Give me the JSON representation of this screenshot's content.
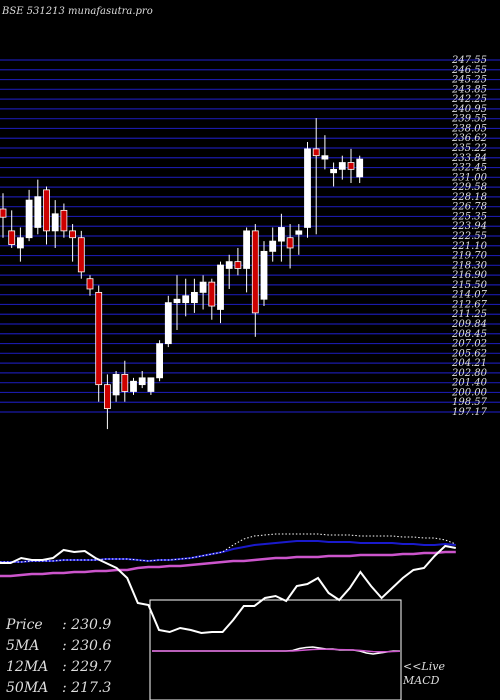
{
  "header": {
    "title": "BSE 531213 munafasutra.pro"
  },
  "colors": {
    "grid": "#1a1aa8",
    "up": "#ffffff",
    "down": "#cc0000",
    "ma_long": "#cc55cc",
    "ma_short": "#1a1acc",
    "price_line": "#ffffff"
  },
  "chart_data": [
    {
      "type": "candlestick",
      "price_ticks": [
        "247.55",
        "246.55",
        "245.25",
        "243.85",
        "242.25",
        "240.95",
        "239.55",
        "238.05",
        "236.62",
        "235.22",
        "233.84",
        "232.45",
        "231.00",
        "229.58",
        "228.18",
        "226.78",
        "225.35",
        "223.94",
        "222.55",
        "221.10",
        "219.70",
        "218.30",
        "216.90",
        "215.50",
        "214.07",
        "212.67",
        "211.25",
        "209.84",
        "208.45",
        "207.02",
        "205.62",
        "204.21",
        "202.80",
        "201.40",
        "200.00",
        "198.57",
        "197.17"
      ],
      "ylim": [
        196.5,
        248.0
      ],
      "candles": [
        {
          "o": 226.2,
          "h": 228.5,
          "l": 222.0,
          "c": 225.0
        },
        {
          "o": 223.0,
          "h": 226.0,
          "l": 220.5,
          "c": 221.0
        },
        {
          "o": 220.5,
          "h": 223.5,
          "l": 218.5,
          "c": 222.0
        },
        {
          "o": 222.0,
          "h": 229.0,
          "l": 221.5,
          "c": 227.5
        },
        {
          "o": 223.5,
          "h": 230.5,
          "l": 222.5,
          "c": 228.0
        },
        {
          "o": 229.0,
          "h": 229.5,
          "l": 221.0,
          "c": 223.0
        },
        {
          "o": 223.0,
          "h": 227.5,
          "l": 220.5,
          "c": 225.5
        },
        {
          "o": 226.0,
          "h": 227.0,
          "l": 222.0,
          "c": 223.0
        },
        {
          "o": 223.0,
          "h": 224.0,
          "l": 218.5,
          "c": 222.0
        },
        {
          "o": 222.0,
          "h": 223.0,
          "l": 216.0,
          "c": 217.0
        },
        {
          "o": 216.0,
          "h": 216.5,
          "l": 213.5,
          "c": 214.5
        },
        {
          "o": 214.0,
          "h": 215.0,
          "l": 198.0,
          "c": 200.5
        },
        {
          "o": 200.5,
          "h": 202.0,
          "l": 194.0,
          "c": 197.0
        },
        {
          "o": 199.0,
          "h": 202.5,
          "l": 198.0,
          "c": 202.0
        },
        {
          "o": 202.0,
          "h": 204.0,
          "l": 198.0,
          "c": 199.5
        },
        {
          "o": 199.5,
          "h": 201.5,
          "l": 199.0,
          "c": 201.0
        },
        {
          "o": 200.5,
          "h": 202.5,
          "l": 200.0,
          "c": 201.5
        },
        {
          "o": 199.5,
          "h": 201.5,
          "l": 199.0,
          "c": 201.5
        },
        {
          "o": 201.5,
          "h": 207.0,
          "l": 201.0,
          "c": 206.5
        },
        {
          "o": 206.5,
          "h": 213.5,
          "l": 206.0,
          "c": 212.5
        },
        {
          "o": 212.5,
          "h": 216.5,
          "l": 208.5,
          "c": 213.0
        },
        {
          "o": 212.5,
          "h": 216.0,
          "l": 210.5,
          "c": 213.5
        },
        {
          "o": 212.5,
          "h": 216.0,
          "l": 211.0,
          "c": 214.0
        },
        {
          "o": 214.0,
          "h": 216.5,
          "l": 211.5,
          "c": 215.5
        },
        {
          "o": 215.5,
          "h": 216.0,
          "l": 210.0,
          "c": 212.0
        },
        {
          "o": 211.5,
          "h": 218.5,
          "l": 209.5,
          "c": 218.0
        },
        {
          "o": 217.5,
          "h": 219.5,
          "l": 214.5,
          "c": 218.5
        },
        {
          "o": 218.5,
          "h": 220.5,
          "l": 216.5,
          "c": 217.5
        },
        {
          "o": 217.5,
          "h": 223.5,
          "l": 214.0,
          "c": 223.0
        },
        {
          "o": 223.0,
          "h": 224.0,
          "l": 207.5,
          "c": 211.0
        },
        {
          "o": 213.0,
          "h": 221.5,
          "l": 212.0,
          "c": 220.0
        },
        {
          "o": 220.0,
          "h": 223.5,
          "l": 218.5,
          "c": 221.5
        },
        {
          "o": 221.5,
          "h": 225.5,
          "l": 218.5,
          "c": 223.5
        },
        {
          "o": 222.0,
          "h": 224.0,
          "l": 217.5,
          "c": 220.5
        },
        {
          "o": 222.5,
          "h": 224.0,
          "l": 219.5,
          "c": 223.0
        },
        {
          "o": 223.5,
          "h": 236.0,
          "l": 222.0,
          "c": 235.0
        },
        {
          "o": 235.0,
          "h": 239.5,
          "l": 222.5,
          "c": 234.0
        },
        {
          "o": 233.5,
          "h": 237.0,
          "l": 232.0,
          "c": 234.0
        },
        {
          "o": 231.5,
          "h": 233.0,
          "l": 229.5,
          "c": 232.0
        },
        {
          "o": 232.0,
          "h": 234.0,
          "l": 230.5,
          "c": 233.0
        },
        {
          "o": 233.0,
          "h": 235.0,
          "l": 230.0,
          "c": 232.0
        },
        {
          "o": 230.9,
          "h": 234.0,
          "l": 230.0,
          "c": 233.5
        }
      ]
    },
    {
      "type": "line",
      "series": [
        {
          "key": "ma_long",
          "values": [
            28,
            28,
            27,
            26,
            26,
            25,
            25,
            24,
            24,
            23,
            23,
            22,
            22,
            20,
            19,
            19,
            18,
            18,
            17,
            16,
            15,
            14,
            13,
            13,
            12,
            11,
            10,
            10,
            9,
            9,
            9,
            8,
            8,
            8,
            7,
            7,
            7,
            7,
            6,
            6,
            5,
            5,
            4,
            4
          ]
        },
        {
          "key": "ma_short",
          "values": [
            14,
            14,
            14,
            13,
            13,
            13,
            12,
            12,
            12,
            12,
            11,
            11,
            11,
            12,
            13,
            12,
            12,
            11,
            10,
            8,
            6,
            4,
            1,
            -1,
            -3,
            -4,
            -5,
            -6,
            -7,
            -7,
            -7,
            -6,
            -6,
            -6,
            -5,
            -5,
            -5,
            -5,
            -4,
            -4,
            -3,
            -3,
            -4,
            -3
          ]
        },
        {
          "key": "price",
          "values": [
            15,
            15,
            10,
            12,
            12,
            10,
            2,
            4,
            3,
            10,
            15,
            20,
            30,
            55,
            57,
            82,
            84,
            80,
            82,
            85,
            84,
            84,
            72,
            58,
            58,
            50,
            48,
            53,
            38,
            36,
            30,
            45,
            52,
            40,
            24,
            38,
            50,
            40,
            30,
            22,
            20,
            8,
            -2,
            0
          ]
        },
        {
          "key": "upper_band",
          "values": [
            14,
            14,
            14,
            13,
            13,
            13,
            12,
            12,
            12,
            12,
            11,
            11,
            11,
            12,
            13,
            12,
            12,
            11,
            10,
            8,
            6,
            4,
            -3,
            -9,
            -12,
            -13,
            -14,
            -14,
            -14,
            -14,
            -14,
            -13,
            -13,
            -13,
            -12,
            -12,
            -12,
            -12,
            -11,
            -11,
            -10,
            -10,
            -8,
            -4
          ]
        }
      ]
    },
    {
      "type": "line",
      "series": [
        {
          "key": "macd",
          "values": [
            0,
            0,
            0,
            0,
            0,
            0,
            0,
            0,
            0,
            0,
            0,
            0,
            0,
            0,
            0,
            0,
            0,
            0,
            0,
            0,
            0,
            0.5,
            2.5,
            3.5,
            4,
            3,
            2,
            2,
            1,
            1,
            1,
            0,
            -2,
            -3,
            -2,
            -1,
            0,
            0
          ]
        },
        {
          "key": "signal",
          "values": [
            0,
            0,
            0,
            0,
            0,
            0,
            0,
            0,
            0,
            0,
            0,
            0,
            0,
            0,
            0,
            0,
            0,
            0,
            0,
            0,
            0,
            0,
            0.5,
            1,
            1.5,
            1.8,
            1.8,
            1.6,
            1.4,
            1.2,
            1,
            0.6,
            0,
            -0.6,
            -0.8,
            -0.7,
            -0.5,
            -0.3
          ]
        }
      ]
    }
  ],
  "stats": [
    {
      "label": "Price",
      "value": ": 230.9"
    },
    {
      "label": "5MA",
      "value": ": 230.6"
    },
    {
      "label": "12MA",
      "value": ": 229.7"
    },
    {
      "label": "50MA",
      "value": ": 217.3"
    }
  ],
  "macd_labels": {
    "live": "<<Live",
    "name": "MACD"
  }
}
